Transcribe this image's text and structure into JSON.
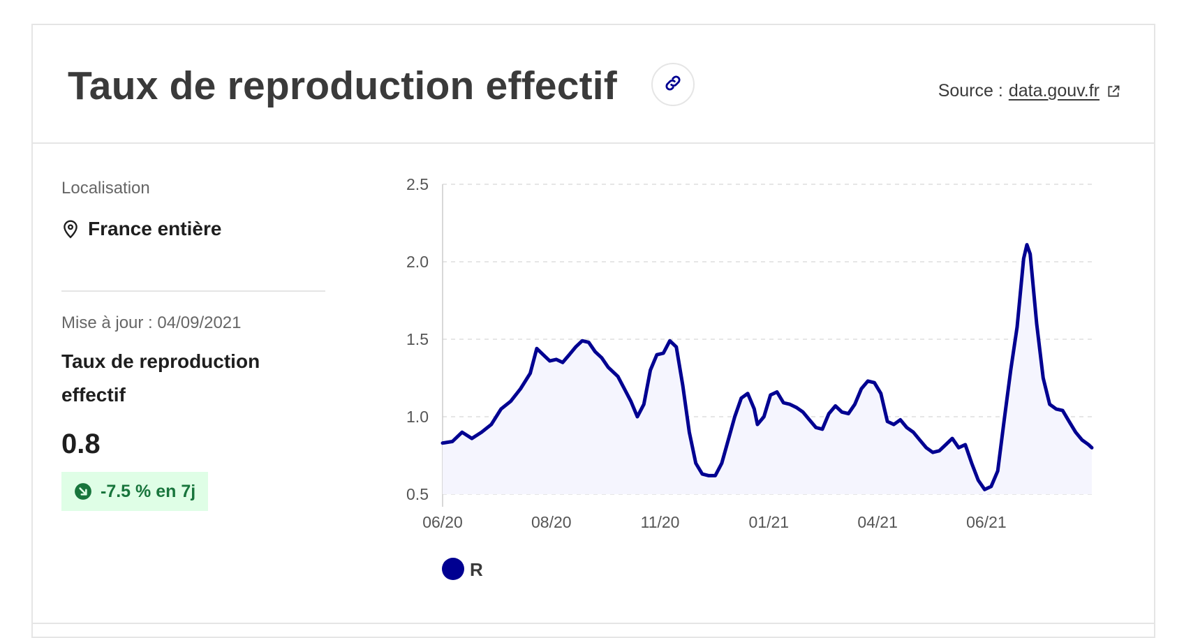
{
  "header": {
    "title": "Taux de reproduction effectif",
    "source_label": "Source :",
    "source_link": "data.gouv.fr"
  },
  "side": {
    "location_label": "Localisation",
    "location_value": "France entière",
    "update_text": "Mise à jour : 04/09/2021",
    "indicator_title": "Taux de reproduction effectif",
    "indicator_value": "0.8",
    "evolution": "-7.5 % en 7j"
  },
  "colors": {
    "series": "#000091",
    "fill": "#f5f5fe",
    "badge_bg": "#dffee6",
    "badge_text": "#18753c"
  },
  "icons": {
    "link": "link-icon",
    "external": "external-link-icon",
    "location": "map-pin-icon",
    "trend": "arrow-down-right-icon"
  },
  "chart_data": {
    "type": "area",
    "title": "",
    "xlabel": "",
    "ylabel": "",
    "ylim": [
      0.5,
      2.5
    ],
    "yticks": [
      "0.5",
      "1.0",
      "1.5",
      "2.0",
      "2.5"
    ],
    "xticks": [
      "06/20",
      "08/20",
      "11/20",
      "01/21",
      "04/21",
      "06/21"
    ],
    "grid": "horizontal dashed",
    "legend": "bottom-left",
    "series": [
      {
        "name": "R",
        "points": [
          [
            0,
            0.83
          ],
          [
            3,
            0.84
          ],
          [
            6,
            0.9
          ],
          [
            9,
            0.86
          ],
          [
            12,
            0.9
          ],
          [
            15,
            0.95
          ],
          [
            18,
            1.05
          ],
          [
            21,
            1.1
          ],
          [
            24,
            1.18
          ],
          [
            27,
            1.28
          ],
          [
            29,
            1.44
          ],
          [
            31,
            1.4
          ],
          [
            33,
            1.36
          ],
          [
            35,
            1.37
          ],
          [
            37,
            1.35
          ],
          [
            39,
            1.4
          ],
          [
            41,
            1.45
          ],
          [
            43,
            1.49
          ],
          [
            45,
            1.48
          ],
          [
            47,
            1.42
          ],
          [
            49,
            1.38
          ],
          [
            51,
            1.32
          ],
          [
            54,
            1.26
          ],
          [
            56,
            1.18
          ],
          [
            58,
            1.1
          ],
          [
            60,
            1.0
          ],
          [
            62,
            1.08
          ],
          [
            64,
            1.3
          ],
          [
            66,
            1.4
          ],
          [
            68,
            1.41
          ],
          [
            70,
            1.49
          ],
          [
            72,
            1.45
          ],
          [
            74,
            1.2
          ],
          [
            76,
            0.9
          ],
          [
            78,
            0.7
          ],
          [
            80,
            0.63
          ],
          [
            82,
            0.62
          ],
          [
            84,
            0.62
          ],
          [
            86,
            0.7
          ],
          [
            88,
            0.85
          ],
          [
            90,
            1.0
          ],
          [
            92,
            1.12
          ],
          [
            94,
            1.15
          ],
          [
            96,
            1.05
          ],
          [
            97,
            0.95
          ],
          [
            99,
            1.0
          ],
          [
            101,
            1.14
          ],
          [
            103,
            1.16
          ],
          [
            105,
            1.09
          ],
          [
            107,
            1.08
          ],
          [
            109,
            1.06
          ],
          [
            111,
            1.03
          ],
          [
            113,
            0.98
          ],
          [
            115,
            0.93
          ],
          [
            117,
            0.92
          ],
          [
            119,
            1.02
          ],
          [
            121,
            1.07
          ],
          [
            123,
            1.03
          ],
          [
            125,
            1.02
          ],
          [
            127,
            1.08
          ],
          [
            129,
            1.18
          ],
          [
            131,
            1.23
          ],
          [
            133,
            1.22
          ],
          [
            135,
            1.15
          ],
          [
            137,
            0.97
          ],
          [
            139,
            0.95
          ],
          [
            141,
            0.98
          ],
          [
            143,
            0.93
          ],
          [
            145,
            0.9
          ],
          [
            147,
            0.85
          ],
          [
            149,
            0.8
          ],
          [
            151,
            0.77
          ],
          [
            153,
            0.78
          ],
          [
            155,
            0.82
          ],
          [
            157,
            0.86
          ],
          [
            159,
            0.8
          ],
          [
            161,
            0.82
          ],
          [
            163,
            0.7
          ],
          [
            165,
            0.59
          ],
          [
            167,
            0.53
          ],
          [
            169,
            0.55
          ],
          [
            171,
            0.65
          ],
          [
            173,
            0.98
          ],
          [
            175,
            1.3
          ],
          [
            177,
            1.58
          ],
          [
            179,
            2.02
          ],
          [
            180,
            2.11
          ],
          [
            181,
            2.05
          ],
          [
            183,
            1.6
          ],
          [
            185,
            1.25
          ],
          [
            187,
            1.08
          ],
          [
            189,
            1.05
          ],
          [
            191,
            1.04
          ],
          [
            193,
            0.97
          ],
          [
            195,
            0.9
          ],
          [
            197,
            0.85
          ],
          [
            199,
            0.82
          ],
          [
            200,
            0.8
          ]
        ]
      }
    ]
  }
}
